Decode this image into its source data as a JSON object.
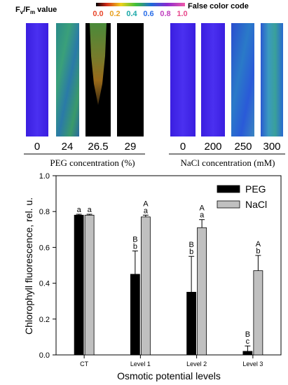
{
  "images_panel": {
    "fvfm_label_main": "F",
    "fvfm_label_sub_v": "v",
    "fvfm_label_slash": "/F",
    "fvfm_label_sub_m": "m",
    "fvfm_label_tail": " value",
    "false_color_label": "False color code",
    "colorbar_ticks": [
      "0.0",
      "0.2",
      "0.4",
      "0.6",
      "0.8",
      "1.0"
    ],
    "colorbar_tick_colors": [
      "#e8462a",
      "#e8a020",
      "#1aa8a8",
      "#2a6ee8",
      "#c040c0",
      "#e84a8c"
    ],
    "peg_group": {
      "labels": [
        "0",
        "24",
        "26.5",
        "29"
      ],
      "caption": "PEG concentration (%)"
    },
    "nacl_group": {
      "labels": [
        "0",
        "200",
        "250",
        "300"
      ],
      "caption": "NaCl concentration (mM)"
    }
  },
  "chart_data": {
    "type": "bar",
    "ylabel": "Chlorophyll fluorescence, rel. u.",
    "xlabel": "Osmotic potential levels",
    "ylim": [
      0,
      1.0
    ],
    "yticks": [
      "0.0",
      "0.2",
      "0.4",
      "0.6",
      "0.8",
      "1.0"
    ],
    "categories": [
      "CT",
      "Level 1",
      "Level 2",
      "Level 3"
    ],
    "legend_position": "top-right",
    "series": [
      {
        "name": "PEG",
        "color": "#000000",
        "values": [
          0.78,
          0.45,
          0.35,
          0.02
        ],
        "errors": [
          0.005,
          0.13,
          0.2,
          0.03
        ],
        "letters_upper": [
          "",
          "B",
          "B",
          "B"
        ],
        "letters_lower": [
          "a",
          "b",
          "b",
          "c"
        ]
      },
      {
        "name": "NaCl",
        "color": "#c0c0c0",
        "values": [
          0.78,
          0.77,
          0.71,
          0.47
        ],
        "errors": [
          0.005,
          0.01,
          0.045,
          0.085
        ],
        "letters_upper": [
          "",
          "A",
          "A",
          "A"
        ],
        "letters_lower": [
          "a",
          "a",
          "a",
          "b"
        ]
      }
    ]
  }
}
